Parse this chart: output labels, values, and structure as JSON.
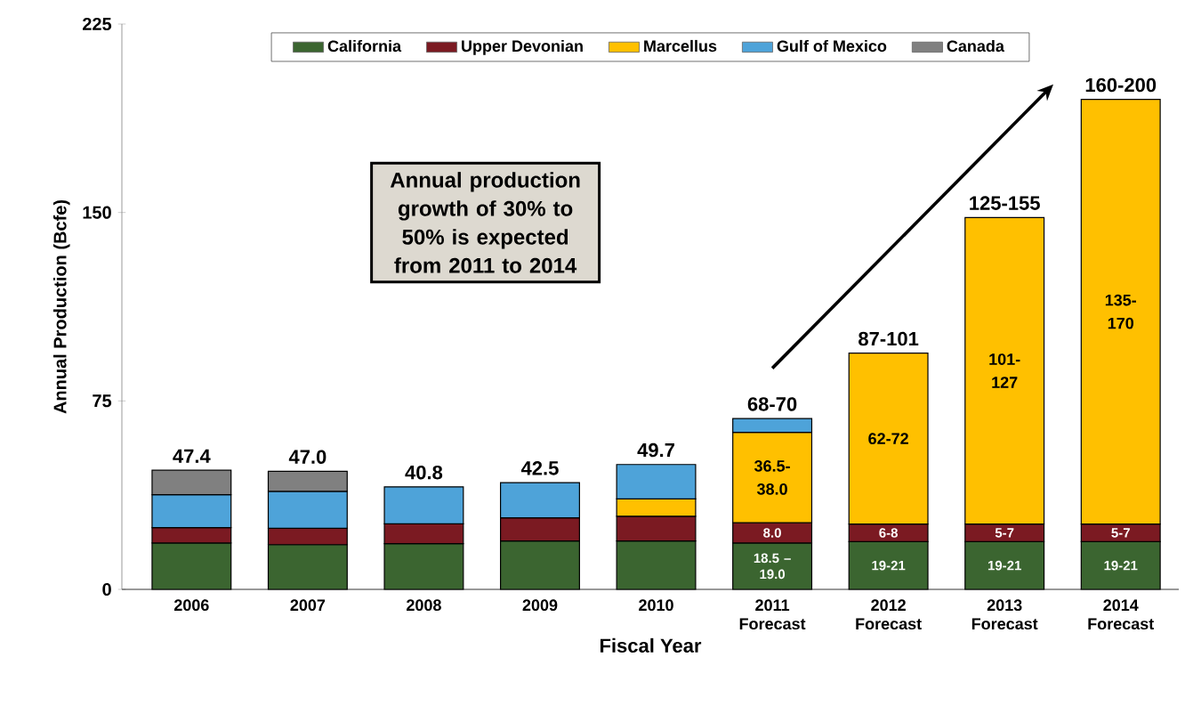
{
  "chart_data": {
    "type": "bar",
    "stacked": true,
    "xlabel": "Fiscal Year",
    "ylabel": "Annual Production (Bcfe)",
    "categories": [
      "2006",
      "2007",
      "2008",
      "2009",
      "2010",
      "2011 Forecast",
      "2012 Forecast",
      "2013 Forecast",
      "2014 Forecast"
    ],
    "ylim": [
      0,
      225
    ],
    "yticks": [
      0,
      75,
      150,
      225
    ],
    "legend": "top",
    "series": [
      {
        "name": "California",
        "color": "#3b6530",
        "values": [
          18.5,
          17.8,
          18.2,
          19.3,
          19.3,
          18.5,
          19,
          19,
          19
        ],
        "value_labels": [
          null,
          null,
          null,
          null,
          null,
          "18.5 – 19.0",
          "19-21",
          "19-21",
          "19-21"
        ]
      },
      {
        "name": "Upper Devonian",
        "color": "#7b1a22",
        "values": [
          6.1,
          6.5,
          7.9,
          9.2,
          9.8,
          8.0,
          7,
          7,
          7
        ],
        "value_labels": [
          null,
          null,
          null,
          null,
          null,
          "8.0",
          "6-8",
          "5-7",
          "5-7"
        ]
      },
      {
        "name": "Marcellus",
        "color": "#ffc000",
        "values": [
          null,
          null,
          null,
          null,
          6.9,
          36.0,
          68,
          122,
          169
        ],
        "value_labels": [
          null,
          null,
          null,
          null,
          null,
          "36.5-38.0",
          "62-72",
          "101-127",
          "135-170"
        ]
      },
      {
        "name": "Gulf of Mexico",
        "color": "#4ea3d9",
        "values": [
          13.1,
          14.7,
          14.7,
          14.0,
          13.7,
          5.5,
          null,
          null,
          null
        ]
      },
      {
        "name": "Canada",
        "color": "#808080",
        "values": [
          9.7,
          8.0,
          null,
          null,
          null,
          null,
          null,
          null,
          null
        ]
      }
    ],
    "totals": [
      "47.4",
      "47.0",
      "40.8",
      "42.5",
      "49.7",
      "68-70",
      "87-101",
      "125-155",
      "160-200"
    ],
    "annotations": [
      "Annual production growth of 30% to 50% is expected from 2011 to 2014"
    ]
  }
}
